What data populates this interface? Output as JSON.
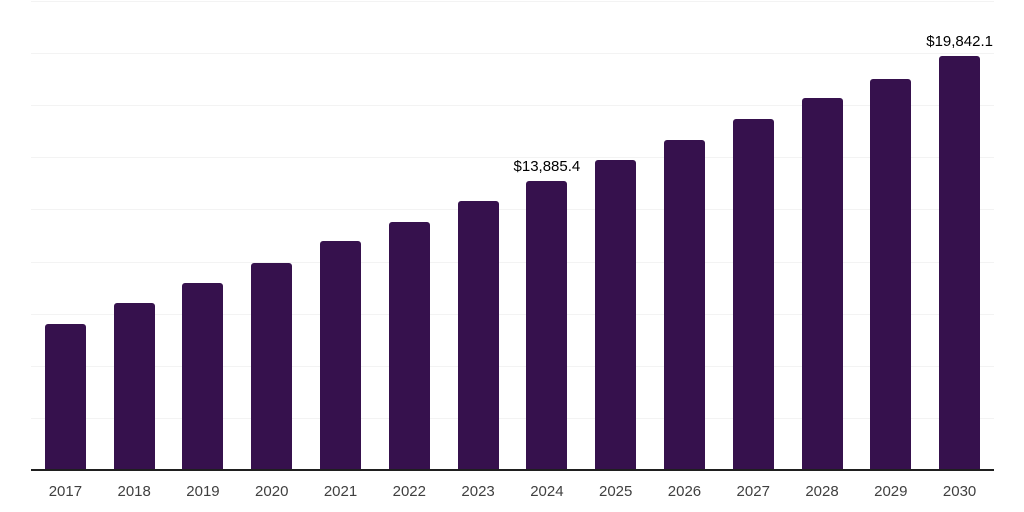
{
  "chart_data": {
    "type": "bar",
    "title": "",
    "xlabel": "",
    "ylabel": "",
    "categories": [
      "2017",
      "2018",
      "2019",
      "2020",
      "2021",
      "2022",
      "2023",
      "2024",
      "2025",
      "2026",
      "2027",
      "2028",
      "2029",
      "2030"
    ],
    "values": [
      6990,
      8010,
      8965,
      9920,
      10970,
      11900,
      12920,
      13885.4,
      14860,
      15845,
      16850,
      17850,
      18780,
      19842.1
    ],
    "data_labels": [
      {
        "category": "2024",
        "text": "$13,885.4"
      },
      {
        "category": "2030",
        "text": "$19,842.1"
      }
    ],
    "ylim": [
      0,
      22500
    ],
    "gridline_step": 2500,
    "grid": "horizontal-only",
    "y_axis_tick_labels_visible": false,
    "legend_position": "none"
  },
  "colors": {
    "bar": "#36114d",
    "gridline": "#f3f3f3",
    "axis_line": "#1f1f1f",
    "x_label_text": "#404040",
    "data_label_text": "#000000",
    "background": "#ffffff"
  }
}
